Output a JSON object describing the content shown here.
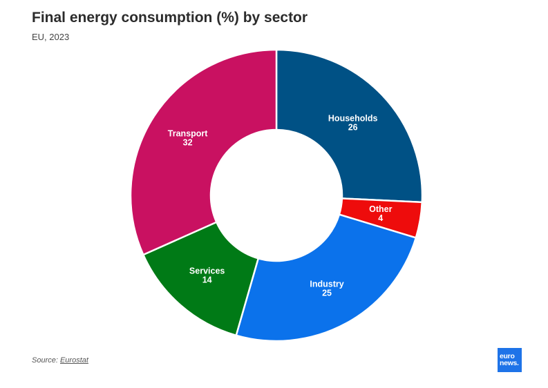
{
  "header": {
    "title": "Final energy consumption (%) by sector",
    "subtitle": "EU, 2023"
  },
  "footer": {
    "source_prefix": "Source: ",
    "source_link": "Eurostat",
    "logo_top": "euro",
    "logo_bottom": "news."
  },
  "chart_data": {
    "type": "pie",
    "style": "donut",
    "title": "Final energy consumption (%) by sector",
    "subtitle": "EU, 2023",
    "categories": [
      "Households",
      "Other",
      "Industry",
      "Services",
      "Transport"
    ],
    "values": [
      26,
      4,
      25,
      14,
      32
    ],
    "colors": [
      "#005185",
      "#ee0c0c",
      "#0b72eb",
      "#007a16",
      "#c91161"
    ],
    "value_labels": [
      "26",
      "4",
      "25",
      "14",
      "32"
    ],
    "start_angle_deg": 0,
    "direction": "clockwise",
    "legend": "none"
  }
}
